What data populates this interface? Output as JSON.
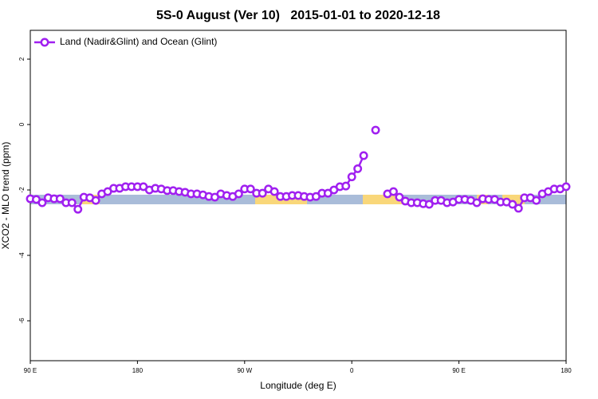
{
  "chart_data": {
    "type": "line",
    "title": "5S-0 August (Ver 10)   2015-01-01 to 2020-12-18",
    "xlabel": "Longitude (deg E)",
    "ylabel": "XCO2 - MLO trend (ppm)",
    "xlim": [
      90,
      540
    ],
    "ylim": [
      -7.22,
      2.88
    ],
    "xticks": [
      {
        "value": 90,
        "label": "90 E"
      },
      180,
      {
        "value": 270,
        "label": "90 W"
      },
      {
        "value": 360,
        "label": "0"
      },
      {
        "value": 450,
        "label": "90 E"
      },
      {
        "value": 540,
        "label": "180"
      }
    ],
    "yticks": [
      2,
      0,
      -2,
      -4,
      -6
    ],
    "legend": "upper left",
    "x": [
      90,
      95,
      100,
      105,
      110,
      115,
      120,
      125,
      130,
      135,
      140,
      145,
      150,
      155,
      160,
      165,
      170,
      175,
      180,
      185,
      190,
      195,
      200,
      205,
      210,
      215,
      220,
      225,
      230,
      235,
      240,
      245,
      250,
      255,
      260,
      265,
      270,
      275,
      280,
      285,
      290,
      295,
      300,
      305,
      310,
      315,
      320,
      325,
      330,
      335,
      340,
      345,
      350,
      355,
      360,
      365,
      370,
      375,
      380,
      385,
      390,
      395,
      400,
      405,
      410,
      415,
      420,
      425,
      430,
      435,
      440,
      445,
      450,
      455,
      460,
      465,
      470,
      475,
      480,
      485,
      490,
      495,
      500,
      505,
      510,
      515,
      520,
      525,
      530,
      535,
      540
    ],
    "series": [
      {
        "name": "Land (Nadir&Glint) and Ocean (Glint)",
        "color": "#a020f0",
        "values": [
          -2.27,
          -2.29,
          -2.39,
          -2.24,
          -2.27,
          -2.27,
          -2.39,
          -2.39,
          -2.59,
          -2.22,
          -2.24,
          -2.32,
          -2.12,
          -2.05,
          -1.95,
          -1.95,
          -1.9,
          -1.9,
          -1.9,
          -1.9,
          -2.0,
          -1.95,
          -1.97,
          -2.02,
          -2.02,
          -2.05,
          -2.07,
          -2.12,
          -2.12,
          -2.15,
          -2.2,
          -2.22,
          -2.12,
          -2.17,
          -2.2,
          -2.12,
          -1.97,
          -1.97,
          -2.1,
          -2.1,
          -1.97,
          -2.05,
          -2.2,
          -2.2,
          -2.17,
          -2.17,
          -2.2,
          -2.22,
          -2.2,
          -2.1,
          -2.1,
          -2.0,
          -1.9,
          -1.88,
          -1.6,
          -1.35,
          -0.95,
          null,
          -0.17,
          null,
          -2.12,
          -2.05,
          -2.22,
          -2.34,
          -2.39,
          -2.39,
          -2.42,
          -2.44,
          -2.32,
          -2.32,
          -2.39,
          -2.37,
          -2.29,
          -2.29,
          -2.32,
          -2.39,
          -2.27,
          -2.29,
          -2.29,
          -2.37,
          -2.37,
          -2.44,
          -2.56,
          -2.24,
          -2.24,
          -2.32,
          -2.12,
          -2.05,
          -1.97,
          -1.97,
          -1.9
        ]
      }
    ]
  }
}
